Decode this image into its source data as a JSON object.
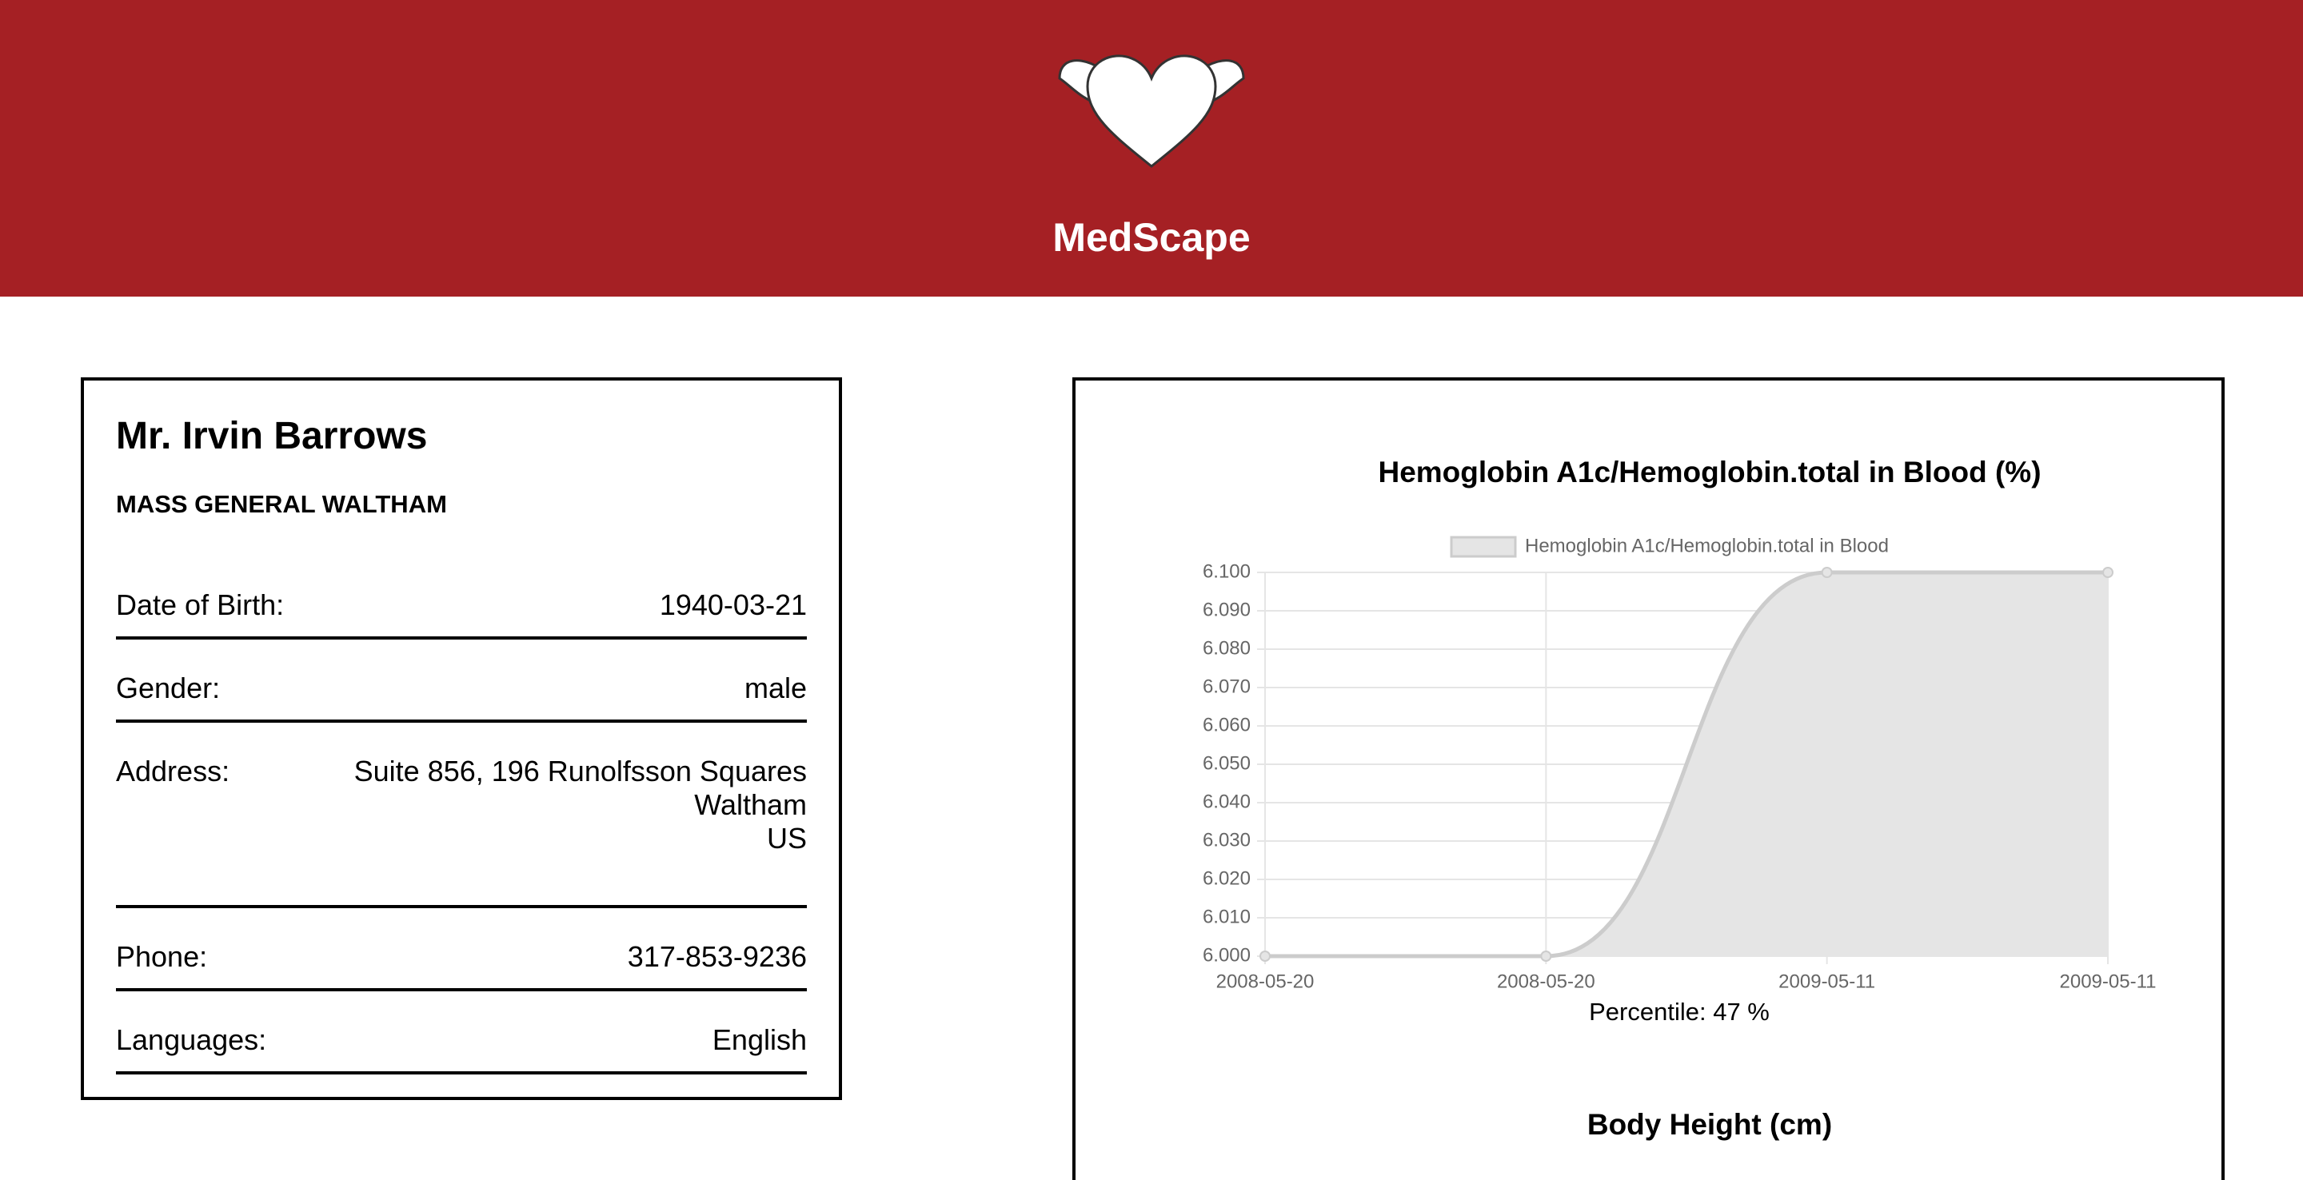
{
  "header": {
    "title": "MedScape"
  },
  "patient": {
    "name": "Mr. Irvin Barrows",
    "organization": "MASS GENERAL WALTHAM",
    "rows": [
      {
        "label": "Date of Birth:",
        "lines": [
          "1940-03-21"
        ]
      },
      {
        "label": "Gender:",
        "lines": [
          "male"
        ]
      },
      {
        "label": "Address:",
        "lines": [
          "Suite 856, 196 Runolfsson Squares",
          "Waltham",
          "US"
        ]
      },
      {
        "label": "Phone:",
        "lines": [
          "317-853-9236"
        ]
      },
      {
        "label": "Languages:",
        "lines": [
          "English"
        ]
      }
    ]
  },
  "chart_data": [
    {
      "type": "area",
      "title": "Hemoglobin A1c/Hemoglobin.total in Blood (%)",
      "categories": [
        "2008-05-20",
        "2008-05-20",
        "2009-05-11",
        "2009-05-11"
      ],
      "series": [
        {
          "name": "Hemoglobin A1c/Hemoglobin.total in Blood",
          "color": "#cccccc",
          "fill": "#e5e5e5",
          "values": [
            6.0,
            6.0,
            6.1,
            6.1
          ]
        }
      ],
      "ylim": [
        6.0,
        6.1
      ],
      "yticks": [
        {
          "value": 6.0,
          "label": "6.000"
        },
        {
          "value": 6.01,
          "label": "6.010"
        },
        {
          "value": 6.02,
          "label": "6.020"
        },
        {
          "value": 6.03,
          "label": "6.030"
        },
        {
          "value": 6.04,
          "label": "6.040"
        },
        {
          "value": 6.05,
          "label": "6.050"
        },
        {
          "value": 6.06,
          "label": "6.060"
        },
        {
          "value": 6.07,
          "label": "6.070"
        },
        {
          "value": 6.08,
          "label": "6.080"
        },
        {
          "value": 6.09,
          "label": "6.090"
        },
        {
          "value": 6.1,
          "label": "6.100"
        }
      ],
      "grid": true,
      "legend": "top",
      "annotation": "Percentile: 47 %"
    },
    {
      "type": "line",
      "title": "Body Height (cm)"
    }
  ]
}
